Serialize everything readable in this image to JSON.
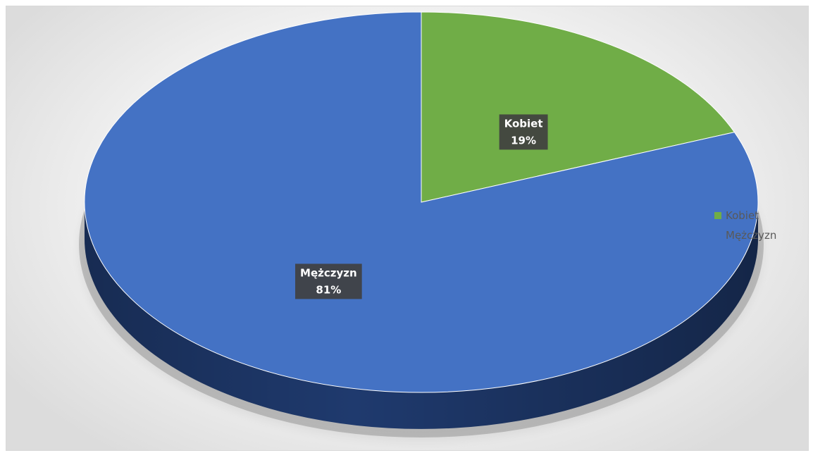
{
  "chart_data": {
    "type": "pie",
    "style": "3d",
    "categories": [
      "Kobiet",
      "Mężczyzn"
    ],
    "values": [
      19,
      81
    ],
    "labels": [
      "19%",
      "81%"
    ],
    "colors": [
      "#70ad47",
      "#4472c4"
    ],
    "side_colors": [
      "#3f6a27",
      "#1f3a6e"
    ],
    "legend": {
      "placement": "right",
      "items": [
        "Kobiet",
        "Mężczyzn"
      ]
    }
  }
}
